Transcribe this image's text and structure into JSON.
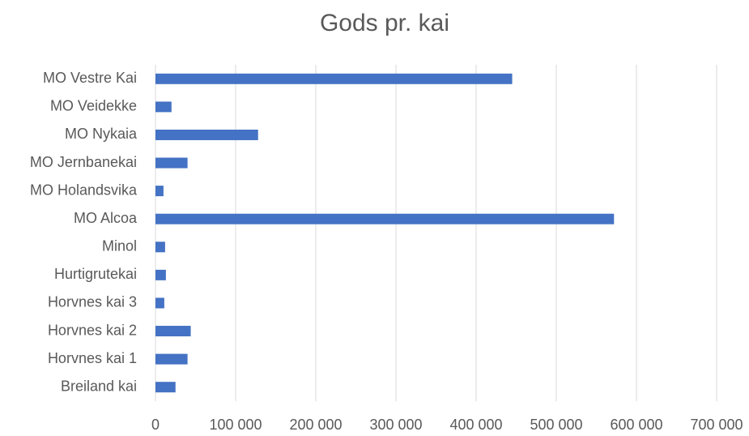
{
  "chart_data": {
    "type": "barh",
    "title": "Gods pr. kai",
    "categories": [
      "Breiland kai",
      "Horvnes kai 1",
      "Horvnes kai 2",
      "Horvnes kai 3",
      "Hurtigrutekai",
      "Minol",
      "MO Alcoa",
      "MO Holandsvika",
      "MO Jernbanekai",
      "MO Nykaia",
      "MO Veidekke",
      "MO Vestre Kai"
    ],
    "values": [
      25000,
      40000,
      44000,
      11000,
      13000,
      12000,
      572000,
      10000,
      40000,
      128000,
      20000,
      445000
    ],
    "color": "#4472c4",
    "xlim": [
      0,
      700000
    ],
    "xticks": [
      0,
      {
        "value": 100000,
        "label": "100 000"
      },
      {
        "value": 200000,
        "label": "200 000"
      },
      {
        "value": 300000,
        "label": "300 000"
      },
      {
        "value": 400000,
        "label": "400 000"
      },
      {
        "value": 500000,
        "label": "500 000"
      },
      {
        "value": 600000,
        "label": "600 000"
      },
      {
        "value": 700000,
        "label": "700 000"
      }
    ],
    "grid": true
  }
}
